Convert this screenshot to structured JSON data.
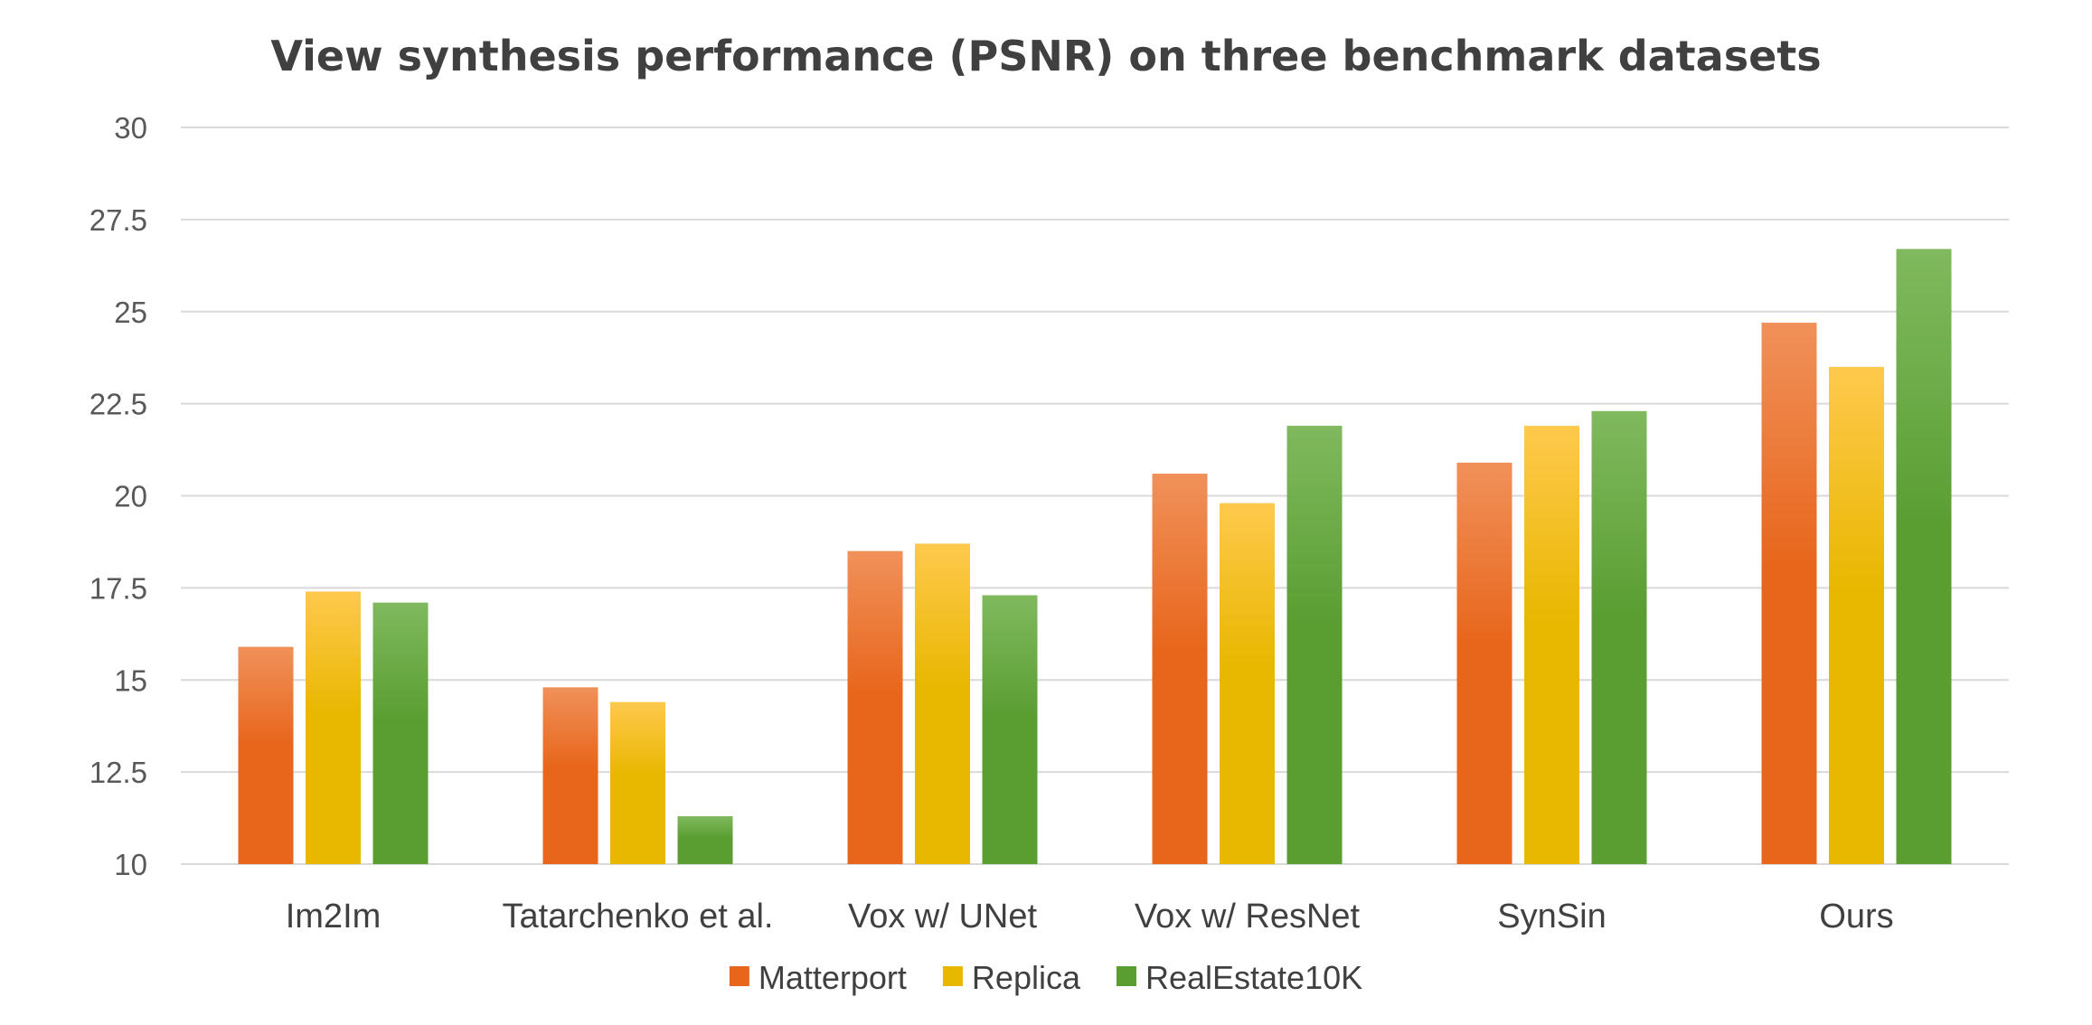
{
  "chart_data": {
    "type": "bar",
    "title": "View synthesis performance (PSNR) on three benchmark datasets",
    "xlabel": "",
    "ylabel": "",
    "categories": [
      "Im2Im",
      "Tatarchenko et al.",
      "Vox w/ UNet",
      "Vox w/ ResNet",
      "SynSin",
      "Ours"
    ],
    "series": [
      {
        "name": "Matterport",
        "values": [
          15.9,
          14.8,
          18.5,
          20.6,
          20.9,
          24.7
        ]
      },
      {
        "name": "Replica",
        "values": [
          17.4,
          14.4,
          18.7,
          19.8,
          21.9,
          23.5
        ]
      },
      {
        "name": "RealEstate10K",
        "values": [
          17.1,
          11.3,
          17.3,
          21.9,
          22.3,
          26.7
        ]
      }
    ],
    "ylim": [
      10,
      30
    ],
    "yticks": [
      "10",
      "12.5",
      "15",
      "17.5",
      "20",
      "22.5",
      "25",
      "27.5",
      "30"
    ],
    "grid": true,
    "legend_position": "bottom",
    "colors": {
      "Matterport": {
        "top": "#f0915a",
        "bottom": "#e8661c"
      },
      "Replica": {
        "top": "#ffc94d",
        "bottom": "#e8b700"
      },
      "RealEstate10K": {
        "top": "#80b95e",
        "bottom": "#5a9e32"
      }
    }
  }
}
